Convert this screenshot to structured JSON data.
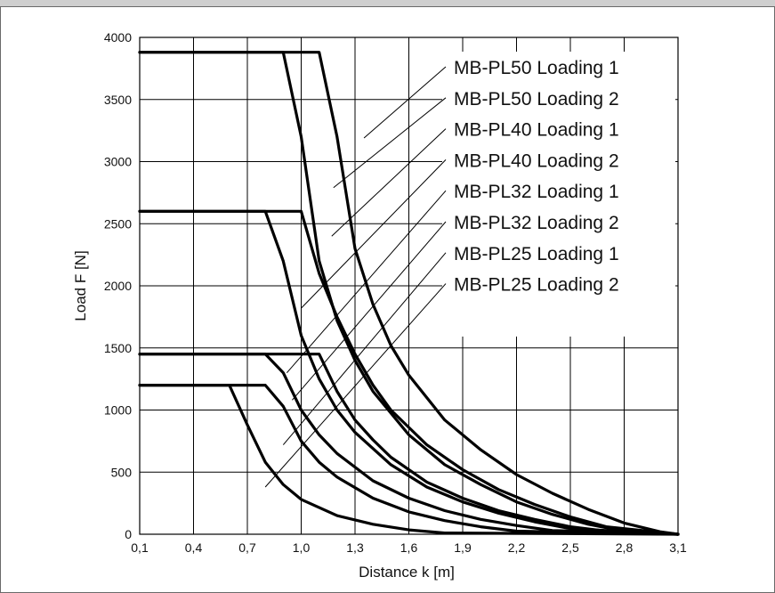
{
  "chart_data": {
    "type": "line",
    "xlabel": "Distance k [m]",
    "ylabel": "Load F [N]",
    "xlim": [
      0.1,
      3.1
    ],
    "ylim": [
      0,
      4000
    ],
    "x_ticks": [
      "0,1",
      "0,4",
      "0,7",
      "1,0",
      "1,3",
      "1,6",
      "1,9",
      "2,2",
      "2,5",
      "2,8",
      "3,1"
    ],
    "x_tick_values": [
      0.1,
      0.4,
      0.7,
      1.0,
      1.3,
      1.6,
      1.9,
      2.2,
      2.5,
      2.8,
      3.1
    ],
    "y_ticks": [
      "0",
      "500",
      "1000",
      "1500",
      "2000",
      "2500",
      "3000",
      "3500",
      "4000"
    ],
    "y_tick_values": [
      0,
      500,
      1000,
      1500,
      2000,
      2500,
      3000,
      3500,
      4000
    ],
    "grid": true,
    "legend_position": "top-right",
    "line_color": "#000000",
    "series": [
      {
        "name": "MB-PL50 Loading 1",
        "x": [
          0.1,
          1.1,
          1.2,
          1.3,
          1.4,
          1.5,
          1.6,
          1.8,
          2.0,
          2.2,
          2.4,
          2.6,
          2.8,
          3.0,
          3.1
        ],
        "y": [
          3880,
          3880,
          3200,
          2300,
          1850,
          1520,
          1280,
          920,
          680,
          480,
          330,
          200,
          90,
          20,
          0
        ]
      },
      {
        "name": "MB-PL50 Loading 2",
        "x": [
          0.1,
          0.9,
          1.0,
          1.1,
          1.2,
          1.3,
          1.4,
          1.6,
          1.8,
          2.0,
          2.2,
          2.4,
          2.6,
          2.8,
          3.1
        ],
        "y": [
          3880,
          3880,
          3200,
          2200,
          1720,
          1400,
          1150,
          800,
          560,
          400,
          260,
          160,
          80,
          25,
          0
        ]
      },
      {
        "name": "MB-PL40 Loading 1",
        "x": [
          0.1,
          1.0,
          1.1,
          1.2,
          1.3,
          1.4,
          1.5,
          1.7,
          1.9,
          2.1,
          2.3,
          2.5,
          2.7,
          3.1
        ],
        "y": [
          2600,
          2600,
          2100,
          1750,
          1450,
          1200,
          1000,
          720,
          520,
          360,
          240,
          140,
          60,
          0
        ]
      },
      {
        "name": "MB-PL40 Loading 2",
        "x": [
          0.1,
          0.8,
          0.9,
          1.0,
          1.1,
          1.2,
          1.3,
          1.5,
          1.7,
          1.9,
          2.1,
          2.3,
          2.5,
          3.1
        ],
        "y": [
          2600,
          2600,
          2200,
          1600,
          1250,
          1000,
          820,
          560,
          380,
          260,
          170,
          100,
          45,
          0
        ]
      },
      {
        "name": "MB-PL32 Loading 1",
        "x": [
          0.1,
          1.1,
          1.2,
          1.3,
          1.4,
          1.5,
          1.7,
          1.9,
          2.1,
          2.3,
          2.5,
          2.7,
          3.1
        ],
        "y": [
          1450,
          1450,
          1150,
          920,
          760,
          620,
          420,
          290,
          190,
          120,
          60,
          25,
          0
        ]
      },
      {
        "name": "MB-PL32 Loading 2",
        "x": [
          0.1,
          0.8,
          0.9,
          1.0,
          1.1,
          1.2,
          1.4,
          1.6,
          1.8,
          2.0,
          2.2,
          2.4,
          3.1
        ],
        "y": [
          1450,
          1450,
          1300,
          1000,
          800,
          650,
          430,
          290,
          190,
          120,
          70,
          30,
          0
        ]
      },
      {
        "name": "MB-PL25 Loading 1",
        "x": [
          0.1,
          0.8,
          0.9,
          1.0,
          1.1,
          1.2,
          1.4,
          1.6,
          1.8,
          2.0,
          2.2,
          3.1
        ],
        "y": [
          1200,
          1200,
          1030,
          750,
          580,
          460,
          290,
          180,
          110,
          60,
          25,
          0
        ]
      },
      {
        "name": "MB-PL25 Loading 2",
        "x": [
          0.1,
          0.6,
          0.7,
          0.8,
          0.9,
          1.0,
          1.2,
          1.4,
          1.6,
          1.8,
          3.1
        ],
        "y": [
          1200,
          1200,
          880,
          580,
          400,
          280,
          150,
          80,
          35,
          10,
          0
        ]
      }
    ],
    "legend_targets": [
      {
        "x": 1.35,
        "y": 3190
      },
      {
        "x": 1.18,
        "y": 2790
      },
      {
        "x": 1.17,
        "y": 2400
      },
      {
        "x": 1.0,
        "y": 1820
      },
      {
        "x": 0.92,
        "y": 1300
      },
      {
        "x": 0.95,
        "y": 1080
      },
      {
        "x": 0.9,
        "y": 720
      },
      {
        "x": 0.8,
        "y": 380
      }
    ]
  }
}
